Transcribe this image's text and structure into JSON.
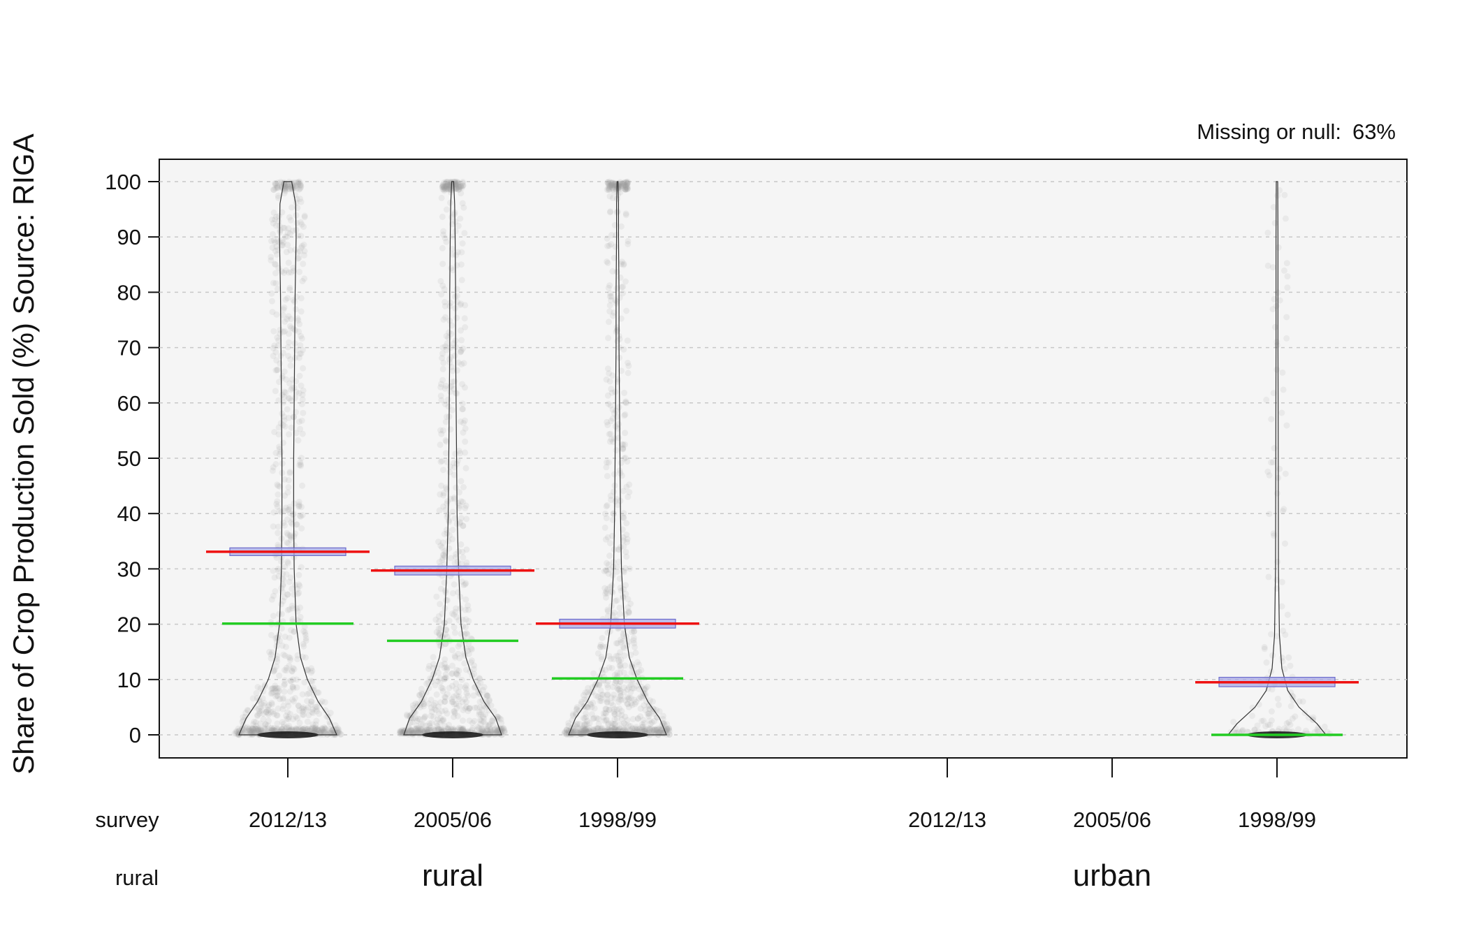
{
  "chart_data": {
    "type": "violin",
    "ylabel": "Share of Crop Production Sold (%) Source: RIGA",
    "ylim": [
      -4,
      104
    ],
    "yticks": [
      0,
      10,
      20,
      30,
      40,
      50,
      60,
      70,
      80,
      90,
      100
    ],
    "grid": true,
    "annotation": {
      "label": "Missing or null:",
      "value": "63%"
    },
    "row_labels": {
      "survey": "survey",
      "rural": "rural"
    },
    "groups": [
      {
        "label": "rural",
        "categories": [
          {
            "survey": "2012/13",
            "mean": 33.1,
            "ci": [
              32.4,
              33.8
            ],
            "median": 20.1,
            "has_data": true,
            "density": [
              [
                0,
                1.0
              ],
              [
                3,
                0.85
              ],
              [
                6,
                0.62
              ],
              [
                10,
                0.4
              ],
              [
                14,
                0.26
              ],
              [
                20,
                0.17
              ],
              [
                30,
                0.13
              ],
              [
                40,
                0.12
              ],
              [
                50,
                0.12
              ],
              [
                60,
                0.13
              ],
              [
                70,
                0.14
              ],
              [
                80,
                0.15
              ],
              [
                90,
                0.17
              ],
              [
                96,
                0.16
              ],
              [
                100,
                0.08
              ]
            ]
          },
          {
            "survey": "2005/06",
            "mean": 29.7,
            "ci": [
              28.9,
              30.5
            ],
            "median": 17.0,
            "has_data": true,
            "density": [
              [
                0,
                1.0
              ],
              [
                3,
                0.88
              ],
              [
                6,
                0.64
              ],
              [
                10,
                0.42
              ],
              [
                14,
                0.27
              ],
              [
                20,
                0.17
              ],
              [
                30,
                0.12
              ],
              [
                40,
                0.09
              ],
              [
                50,
                0.08
              ],
              [
                60,
                0.07
              ],
              [
                70,
                0.06
              ],
              [
                80,
                0.06
              ],
              [
                90,
                0.05
              ],
              [
                96,
                0.04
              ],
              [
                100,
                0.02
              ]
            ]
          },
          {
            "survey": "1998/99",
            "mean": 20.1,
            "ci": [
              19.3,
              20.9
            ],
            "median": 10.2,
            "has_data": true,
            "density": [
              [
                0,
                1.0
              ],
              [
                3,
                0.86
              ],
              [
                6,
                0.62
              ],
              [
                10,
                0.4
              ],
              [
                14,
                0.24
              ],
              [
                20,
                0.14
              ],
              [
                30,
                0.08
              ],
              [
                40,
                0.06
              ],
              [
                50,
                0.05
              ],
              [
                60,
                0.04
              ],
              [
                70,
                0.03
              ],
              [
                80,
                0.03
              ],
              [
                90,
                0.02
              ],
              [
                96,
                0.02
              ],
              [
                100,
                0.01
              ]
            ]
          }
        ]
      },
      {
        "label": "urban",
        "categories": [
          {
            "survey": "2012/13",
            "has_data": false
          },
          {
            "survey": "2005/06",
            "has_data": false
          },
          {
            "survey": "1998/99",
            "mean": 9.5,
            "ci": [
              8.7,
              10.4
            ],
            "median": 0.0,
            "has_data": true,
            "density": [
              [
                0,
                1.0
              ],
              [
                2,
                0.82
              ],
              [
                5,
                0.45
              ],
              [
                8,
                0.22
              ],
              [
                12,
                0.1
              ],
              [
                18,
                0.05
              ],
              [
                30,
                0.03
              ],
              [
                50,
                0.025
              ],
              [
                70,
                0.02
              ],
              [
                90,
                0.02
              ],
              [
                100,
                0.015
              ]
            ]
          }
        ]
      }
    ],
    "colors": {
      "panel": "#f5f5f5",
      "grid": "#c8c8c8",
      "points": "#9a9a9a",
      "mean": "#ee1111",
      "median": "#22cc22",
      "ci_fill": "#a9a9e6",
      "ci_stroke": "#6b6bcc",
      "violin": "#333333"
    }
  }
}
